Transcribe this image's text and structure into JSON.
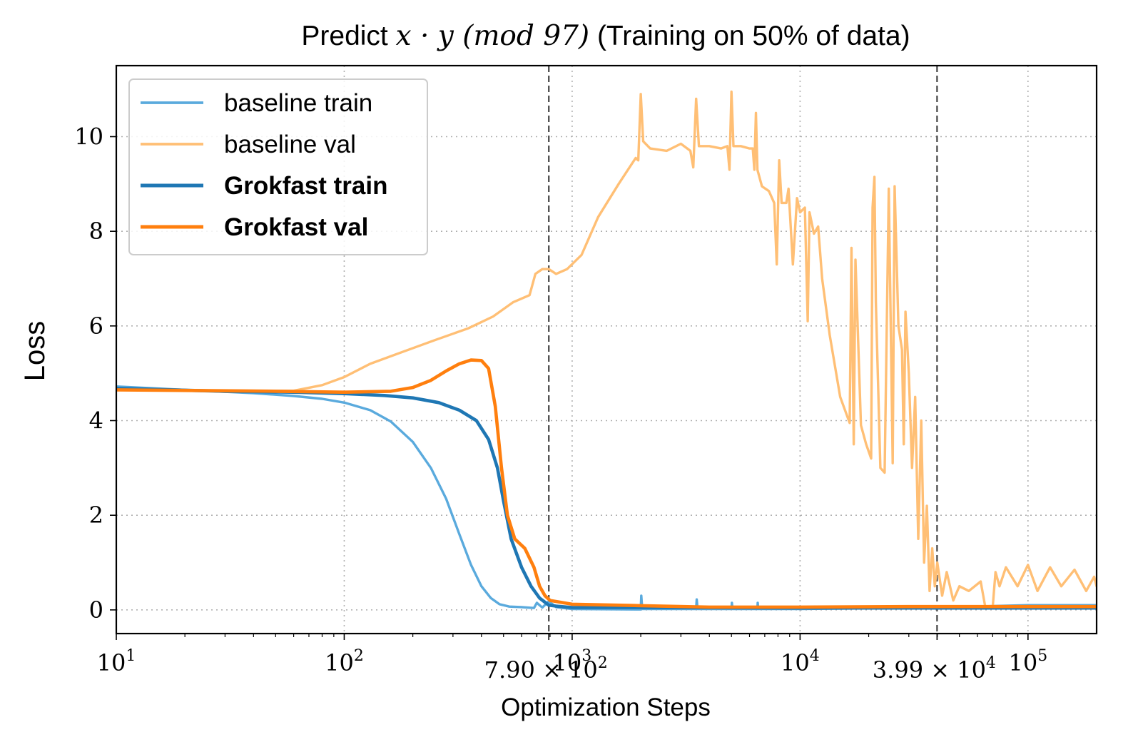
{
  "chart_data": {
    "type": "line",
    "title_prefix": "Predict ",
    "title_math": "x · y (mod 97)",
    "title_suffix": " (Training on 50% of data)",
    "xlabel": "Optimization Steps",
    "ylabel": "Loss",
    "xscale": "log",
    "xlim": [
      10,
      200000
    ],
    "ylim": [
      -0.5,
      11.5
    ],
    "grid": true,
    "legend_position": "top-left",
    "xticks": [
      {
        "value": 10,
        "base": "10",
        "exp": "1"
      },
      {
        "value": 100,
        "base": "10",
        "exp": "2"
      },
      {
        "value": 1000,
        "base": "10",
        "exp": "3"
      },
      {
        "value": 10000,
        "base": "10",
        "exp": "4"
      },
      {
        "value": 100000,
        "base": "10",
        "exp": "5"
      }
    ],
    "xticks_special": [
      {
        "value": 790,
        "mant": "7.90 × 10",
        "exp": "2"
      },
      {
        "value": 39900,
        "mant": "3.99 × 10",
        "exp": "4"
      }
    ],
    "yticks": [
      {
        "value": 0,
        "label": "0"
      },
      {
        "value": 2,
        "label": "2"
      },
      {
        "value": 4,
        "label": "4"
      },
      {
        "value": 6,
        "label": "6"
      },
      {
        "value": 8,
        "label": "8"
      },
      {
        "value": 10,
        "label": "10"
      }
    ],
    "vlines": [
      790,
      39900
    ],
    "series": [
      {
        "name": "baseline train",
        "color": "#5aaadd",
        "bold": false,
        "points": [
          [
            10,
            4.72
          ],
          [
            20,
            4.65
          ],
          [
            40,
            4.58
          ],
          [
            60,
            4.52
          ],
          [
            80,
            4.46
          ],
          [
            100,
            4.38
          ],
          [
            130,
            4.22
          ],
          [
            160,
            3.98
          ],
          [
            200,
            3.55
          ],
          [
            240,
            3.0
          ],
          [
            280,
            2.35
          ],
          [
            320,
            1.6
          ],
          [
            360,
            0.95
          ],
          [
            400,
            0.5
          ],
          [
            440,
            0.25
          ],
          [
            480,
            0.12
          ],
          [
            530,
            0.07
          ],
          [
            600,
            0.06
          ],
          [
            680,
            0.04
          ],
          [
            700,
            0.15
          ],
          [
            740,
            0.05
          ],
          [
            790,
            0.18
          ],
          [
            850,
            0.06
          ],
          [
            1000,
            0.02
          ],
          [
            2000,
            0.01
          ],
          [
            2010,
            0.3
          ],
          [
            2030,
            0.02
          ],
          [
            3500,
            0.02
          ],
          [
            3520,
            0.22
          ],
          [
            3550,
            0.02
          ],
          [
            5000,
            0.02
          ],
          [
            5020,
            0.15
          ],
          [
            5050,
            0.02
          ],
          [
            6500,
            0.02
          ],
          [
            6520,
            0.15
          ],
          [
            6550,
            0.02
          ],
          [
            10000,
            0.02
          ],
          [
            30000,
            0.04
          ],
          [
            50000,
            0.05
          ],
          [
            70000,
            0.08
          ],
          [
            100000,
            0.1
          ],
          [
            150000,
            0.1
          ],
          [
            200000,
            0.1
          ]
        ]
      },
      {
        "name": "baseline val",
        "color": "#ffbf75",
        "bold": false,
        "points": [
          [
            10,
            4.65
          ],
          [
            40,
            4.63
          ],
          [
            60,
            4.63
          ],
          [
            80,
            4.75
          ],
          [
            100,
            4.92
          ],
          [
            130,
            5.2
          ],
          [
            180,
            5.45
          ],
          [
            250,
            5.7
          ],
          [
            350,
            5.95
          ],
          [
            450,
            6.2
          ],
          [
            550,
            6.5
          ],
          [
            650,
            6.65
          ],
          [
            690,
            7.1
          ],
          [
            740,
            7.2
          ],
          [
            790,
            7.2
          ],
          [
            850,
            7.1
          ],
          [
            950,
            7.2
          ],
          [
            1100,
            7.5
          ],
          [
            1300,
            8.3
          ],
          [
            1600,
            9.0
          ],
          [
            1900,
            9.55
          ],
          [
            1950,
            9.5
          ],
          [
            2000,
            10.9
          ],
          [
            2050,
            9.9
          ],
          [
            2200,
            9.75
          ],
          [
            2600,
            9.7
          ],
          [
            3000,
            9.85
          ],
          [
            3300,
            9.7
          ],
          [
            3400,
            9.35
          ],
          [
            3500,
            10.8
          ],
          [
            3600,
            9.8
          ],
          [
            4000,
            9.8
          ],
          [
            4500,
            9.75
          ],
          [
            4800,
            9.8
          ],
          [
            4900,
            9.3
          ],
          [
            5000,
            10.95
          ],
          [
            5100,
            9.8
          ],
          [
            5500,
            9.8
          ],
          [
            6000,
            9.75
          ],
          [
            6200,
            9.75
          ],
          [
            6300,
            9.3
          ],
          [
            6400,
            10.5
          ],
          [
            6500,
            9.3
          ],
          [
            6800,
            8.95
          ],
          [
            7300,
            8.85
          ],
          [
            7700,
            8.6
          ],
          [
            7900,
            7.3
          ],
          [
            8100,
            9.5
          ],
          [
            8300,
            8.6
          ],
          [
            8700,
            8.6
          ],
          [
            8900,
            8.9
          ],
          [
            9300,
            7.3
          ],
          [
            9700,
            8.7
          ],
          [
            10000,
            8.4
          ],
          [
            10500,
            8.5
          ],
          [
            10800,
            6.1
          ],
          [
            11000,
            8.4
          ],
          [
            11500,
            7.95
          ],
          [
            12000,
            8.1
          ],
          [
            12500,
            7.0
          ],
          [
            13500,
            5.8
          ],
          [
            15000,
            4.5
          ],
          [
            16500,
            3.95
          ],
          [
            16800,
            7.65
          ],
          [
            17200,
            3.5
          ],
          [
            17500,
            7.4
          ],
          [
            18500,
            3.9
          ],
          [
            19500,
            3.5
          ],
          [
            20500,
            3.2
          ],
          [
            20800,
            8.5
          ],
          [
            21200,
            9.15
          ],
          [
            21500,
            6.5
          ],
          [
            22500,
            3.0
          ],
          [
            23500,
            2.9
          ],
          [
            24500,
            8.9
          ],
          [
            25500,
            3.1
          ],
          [
            26000,
            8.95
          ],
          [
            27000,
            6.0
          ],
          [
            28000,
            5.5
          ],
          [
            28500,
            3.5
          ],
          [
            29000,
            6.3
          ],
          [
            30000,
            5.0
          ],
          [
            31000,
            3.0
          ],
          [
            32000,
            4.5
          ],
          [
            33000,
            1.5
          ],
          [
            34000,
            4.0
          ],
          [
            35000,
            1.0
          ],
          [
            36000,
            2.2
          ],
          [
            37000,
            0.4
          ],
          [
            38000,
            1.3
          ],
          [
            39000,
            0.5
          ],
          [
            40000,
            1.0
          ],
          [
            42000,
            0.3
          ],
          [
            44000,
            0.8
          ],
          [
            47000,
            0.2
          ],
          [
            50000,
            0.5
          ],
          [
            55000,
            0.4
          ],
          [
            62000,
            0.6
          ],
          [
            65000,
            0.05
          ],
          [
            70000,
            0.05
          ],
          [
            72000,
            0.8
          ],
          [
            75000,
            0.5
          ],
          [
            80000,
            0.9
          ],
          [
            90000,
            0.5
          ],
          [
            100000,
            0.95
          ],
          [
            110000,
            0.4
          ],
          [
            125000,
            0.9
          ],
          [
            140000,
            0.5
          ],
          [
            160000,
            0.85
          ],
          [
            180000,
            0.4
          ],
          [
            195000,
            0.7
          ],
          [
            200000,
            0.5
          ]
        ]
      },
      {
        "name": "Grokfast train",
        "color": "#1f77b4",
        "bold": true,
        "points": [
          [
            10,
            4.68
          ],
          [
            30,
            4.62
          ],
          [
            60,
            4.6
          ],
          [
            100,
            4.57
          ],
          [
            150,
            4.53
          ],
          [
            200,
            4.48
          ],
          [
            260,
            4.38
          ],
          [
            320,
            4.22
          ],
          [
            380,
            4.0
          ],
          [
            430,
            3.6
          ],
          [
            470,
            3.0
          ],
          [
            500,
            2.3
          ],
          [
            540,
            1.5
          ],
          [
            600,
            0.9
          ],
          [
            660,
            0.5
          ],
          [
            720,
            0.25
          ],
          [
            790,
            0.1
          ],
          [
            850,
            0.08
          ],
          [
            1000,
            0.05
          ],
          [
            2000,
            0.05
          ],
          [
            10000,
            0.04
          ],
          [
            100000,
            0.04
          ],
          [
            200000,
            0.04
          ]
        ]
      },
      {
        "name": "Grokfast val",
        "color": "#ff7f0e",
        "bold": true,
        "points": [
          [
            10,
            4.65
          ],
          [
            50,
            4.62
          ],
          [
            100,
            4.6
          ],
          [
            160,
            4.62
          ],
          [
            200,
            4.7
          ],
          [
            240,
            4.85
          ],
          [
            280,
            5.05
          ],
          [
            320,
            5.2
          ],
          [
            360,
            5.28
          ],
          [
            400,
            5.27
          ],
          [
            430,
            5.1
          ],
          [
            460,
            4.3
          ],
          [
            490,
            3.0
          ],
          [
            520,
            2.0
          ],
          [
            560,
            1.5
          ],
          [
            620,
            1.3
          ],
          [
            680,
            0.9
          ],
          [
            720,
            0.5
          ],
          [
            760,
            0.3
          ],
          [
            800,
            0.2
          ],
          [
            1000,
            0.12
          ],
          [
            2000,
            0.09
          ],
          [
            4000,
            0.06
          ],
          [
            10000,
            0.06
          ],
          [
            30000,
            0.07
          ],
          [
            100000,
            0.07
          ],
          [
            200000,
            0.07
          ]
        ]
      }
    ]
  }
}
